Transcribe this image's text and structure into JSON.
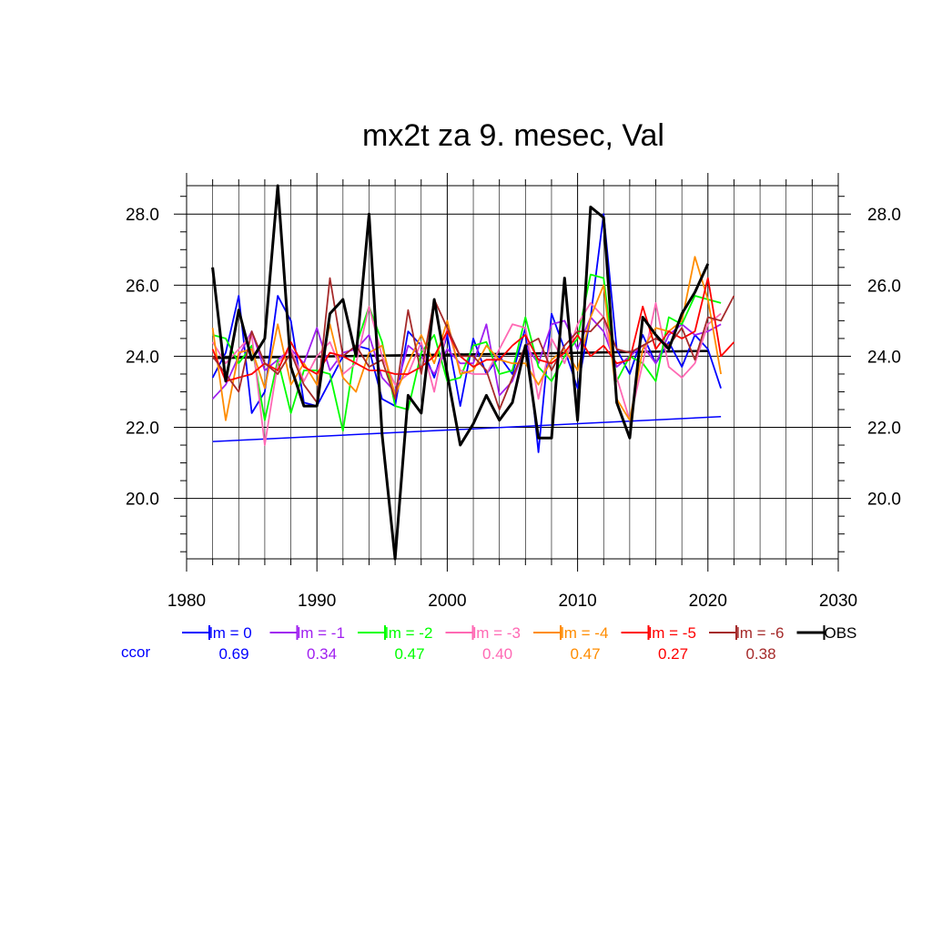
{
  "chart_data": {
    "type": "line",
    "title": "mx2t za 9. mesec, Val",
    "xlim": [
      1980,
      2030
    ],
    "ylim": [
      18.3,
      28.8
    ],
    "x_ticks": [
      "1980",
      "1990",
      "2000",
      "2010",
      "2020",
      "2030"
    ],
    "y_ticks": [
      "20.0",
      "22.0",
      "24.0",
      "26.0",
      "28.0"
    ],
    "grid": true,
    "legend_position": "bottom",
    "ccor_label": "ccor",
    "series": [
      {
        "name": "lm = 0",
        "color": "#0000ff",
        "ccor": "0.69",
        "x": [
          1982,
          1983,
          1984,
          1985,
          1986,
          1987,
          1988,
          1989,
          1990,
          1991,
          1992,
          1993,
          1994,
          1995,
          1996,
          1997,
          1998,
          1999,
          2000,
          2001,
          2002,
          2003,
          2004,
          2005,
          2006,
          2007,
          2008,
          2009,
          2010,
          2011,
          2012,
          2013,
          2014,
          2015,
          2016,
          2017,
          2018,
          2019,
          2020,
          2021
        ],
        "values": [
          23.4,
          24.1,
          25.7,
          22.4,
          23.0,
          25.7,
          25.0,
          22.7,
          22.6,
          23.3,
          24.0,
          24.3,
          24.2,
          22.8,
          22.6,
          24.7,
          24.3,
          23.4,
          24.6,
          22.6,
          24.5,
          23.5,
          24.0,
          23.5,
          24.8,
          21.3,
          25.2,
          24.2,
          23.1,
          25.1,
          28.0,
          24.2,
          23.5,
          24.6,
          23.8,
          24.4,
          23.7,
          24.6,
          24.2,
          23.1
        ],
        "trend": [
          21.6,
          22.3
        ]
      },
      {
        "name": "lm = -1",
        "color": "#a020f0",
        "ccor": "0.34",
        "x": [
          1982,
          1983,
          1984,
          1985,
          1986,
          1987,
          1988,
          1989,
          1990,
          1991,
          1992,
          1993,
          1994,
          1995,
          1996,
          1997,
          1998,
          1999,
          2000,
          2001,
          2002,
          2003,
          2004,
          2005,
          2006,
          2007,
          2008,
          2009,
          2010,
          2011,
          2012,
          2013,
          2014,
          2015,
          2016,
          2017,
          2018,
          2019,
          2020,
          2021
        ],
        "values": [
          22.8,
          23.2,
          24.0,
          24.7,
          23.6,
          23.9,
          24.2,
          23.8,
          24.8,
          23.6,
          24.1,
          24.2,
          24.6,
          23.4,
          23.0,
          24.3,
          24.0,
          23.5,
          24.2,
          23.8,
          23.8,
          24.9,
          22.9,
          23.3,
          24.3,
          23.8,
          24.9,
          25.0,
          24.2,
          25.1,
          24.7,
          23.7,
          24.0,
          24.3,
          23.8,
          24.6,
          24.9,
          24.6,
          24.7,
          24.9
        ]
      },
      {
        "name": "lm = -2",
        "color": "#00ff00",
        "ccor": "0.47",
        "x": [
          1982,
          1983,
          1984,
          1985,
          1986,
          1987,
          1988,
          1989,
          1990,
          1991,
          1992,
          1993,
          1994,
          1995,
          1996,
          1997,
          1998,
          1999,
          2000,
          2001,
          2002,
          2003,
          2004,
          2005,
          2006,
          2007,
          2008,
          2009,
          2010,
          2011,
          2012,
          2013,
          2014,
          2015,
          2016,
          2017,
          2018,
          2019,
          2020,
          2021
        ],
        "values": [
          24.6,
          24.5,
          23.8,
          24.3,
          22.2,
          23.9,
          22.4,
          23.6,
          23.6,
          23.5,
          21.9,
          24.3,
          25.4,
          24.4,
          22.6,
          22.5,
          24.1,
          24.6,
          23.3,
          23.4,
          24.3,
          24.4,
          23.5,
          23.6,
          25.1,
          23.7,
          23.3,
          24.0,
          24.5,
          26.3,
          26.2,
          23.3,
          24.0,
          23.8,
          23.3,
          25.1,
          24.9,
          25.7,
          25.6,
          25.5
        ]
      },
      {
        "name": "lm = -3",
        "color": "#ff69b4",
        "ccor": "0.40",
        "x": [
          1982,
          1983,
          1984,
          1985,
          1986,
          1987,
          1988,
          1989,
          1990,
          1991,
          1992,
          1993,
          1994,
          1995,
          1996,
          1997,
          1998,
          1999,
          2000,
          2001,
          2002,
          2003,
          2004,
          2005,
          2006,
          2007,
          2008,
          2009,
          2010,
          2011,
          2012,
          2013,
          2014,
          2015,
          2016,
          2017,
          2018,
          2019,
          2020,
          2021
        ],
        "values": [
          24.4,
          23.8,
          24.2,
          24.6,
          21.5,
          23.8,
          24.2,
          23.3,
          24.0,
          24.4,
          23.5,
          23.8,
          25.4,
          24.0,
          23.2,
          23.5,
          24.4,
          23.0,
          24.8,
          23.6,
          23.5,
          23.5,
          24.2,
          24.9,
          24.8,
          22.8,
          24.5,
          23.8,
          24.9,
          25.5,
          25.1,
          23.4,
          22.2,
          23.8,
          25.5,
          23.7,
          23.4,
          23.8,
          24.9,
          25.2
        ]
      },
      {
        "name": "lm = -4",
        "color": "#ff8c00",
        "ccor": "0.47",
        "x": [
          1982,
          1983,
          1984,
          1985,
          1986,
          1987,
          1988,
          1989,
          1990,
          1991,
          1992,
          1993,
          1994,
          1995,
          1996,
          1997,
          1998,
          1999,
          2000,
          2001,
          2002,
          2003,
          2004,
          2005,
          2006,
          2007,
          2008,
          2009,
          2010,
          2011,
          2012,
          2013,
          2014,
          2015,
          2016,
          2017,
          2018,
          2019,
          2020,
          2021
        ],
        "values": [
          24.8,
          22.2,
          24.1,
          24.2,
          23.1,
          24.9,
          23.2,
          23.8,
          23.2,
          24.9,
          23.4,
          23.0,
          24.1,
          24.3,
          22.9,
          23.8,
          24.6,
          23.8,
          25.0,
          23.5,
          23.6,
          24.3,
          23.9,
          23.8,
          23.8,
          23.2,
          23.9,
          24.2,
          23.6,
          25.1,
          26.0,
          22.8,
          22.2,
          24.2,
          24.8,
          24.7,
          25.0,
          26.8,
          25.6,
          23.5
        ]
      },
      {
        "name": "lm = -5",
        "color": "#ff0000",
        "ccor": "0.27",
        "x": [
          1982,
          1983,
          1984,
          1985,
          1986,
          1987,
          1988,
          1989,
          1990,
          1991,
          1992,
          1993,
          1994,
          1995,
          1996,
          1997,
          1998,
          1999,
          2000,
          2001,
          2002,
          2003,
          2004,
          2005,
          2006,
          2007,
          2008,
          2009,
          2010,
          2011,
          2012,
          2013,
          2014,
          2015,
          2016,
          2017,
          2018,
          2019,
          2020,
          2021,
          2022
        ],
        "values": [
          24.2,
          23.3,
          23.4,
          23.5,
          23.8,
          23.6,
          24.4,
          23.7,
          23.5,
          24.1,
          24.0,
          23.8,
          23.6,
          23.6,
          23.5,
          23.5,
          23.7,
          24.0,
          24.7,
          24.0,
          23.7,
          23.9,
          23.9,
          24.3,
          24.6,
          23.9,
          23.8,
          24.1,
          24.6,
          24.0,
          24.3,
          23.8,
          23.9,
          25.4,
          24.2,
          24.7,
          24.5,
          24.7,
          26.2,
          24.0,
          24.4
        ]
      },
      {
        "name": "lm = -6",
        "color": "#a52a2a",
        "ccor": "0.38",
        "x": [
          1982,
          1983,
          1984,
          1985,
          1986,
          1987,
          1988,
          1989,
          1990,
          1991,
          1992,
          1993,
          1994,
          1995,
          1996,
          1997,
          1998,
          1999,
          2000,
          2001,
          2002,
          2003,
          2004,
          2005,
          2006,
          2007,
          2008,
          2009,
          2010,
          2011,
          2012,
          2013,
          2014,
          2015,
          2016,
          2017,
          2018,
          2019,
          2020,
          2021,
          2022
        ],
        "values": [
          24.0,
          23.5,
          23.0,
          24.7,
          23.8,
          23.5,
          24.1,
          23.2,
          22.7,
          26.2,
          24.0,
          24.3,
          23.7,
          23.9,
          22.8,
          25.3,
          23.5,
          25.6,
          24.8,
          24.0,
          24.0,
          23.6,
          22.5,
          23.4,
          24.3,
          24.5,
          23.6,
          24.3,
          24.7,
          24.7,
          25.1,
          24.2,
          24.1,
          24.3,
          24.5,
          24.3,
          24.8,
          23.9,
          25.1,
          25.0,
          25.7
        ]
      },
      {
        "name": "OBS",
        "color": "#000000",
        "ccor": "",
        "x": [
          1982,
          1983,
          1984,
          1985,
          1986,
          1987,
          1988,
          1989,
          1990,
          1991,
          1992,
          1993,
          1994,
          1995,
          1996,
          1997,
          1998,
          1999,
          2000,
          2001,
          2002,
          2003,
          2004,
          2005,
          2006,
          2007,
          2008,
          2009,
          2010,
          2011,
          2012,
          2013,
          2014,
          2015,
          2016,
          2017,
          2018,
          2019,
          2020
        ],
        "values": [
          26.5,
          23.3,
          25.3,
          23.9,
          24.5,
          28.8,
          23.7,
          22.6,
          22.6,
          25.2,
          25.6,
          24.0,
          28.0,
          21.8,
          18.3,
          22.9,
          22.4,
          25.6,
          23.5,
          21.5,
          22.1,
          22.9,
          22.2,
          22.7,
          24.3,
          21.7,
          21.7,
          26.2,
          22.2,
          28.2,
          27.9,
          22.7,
          21.7,
          25.1,
          24.6,
          24.2,
          25.2,
          25.8,
          26.6
        ],
        "trend": [
          23.95,
          24.15
        ]
      }
    ]
  }
}
